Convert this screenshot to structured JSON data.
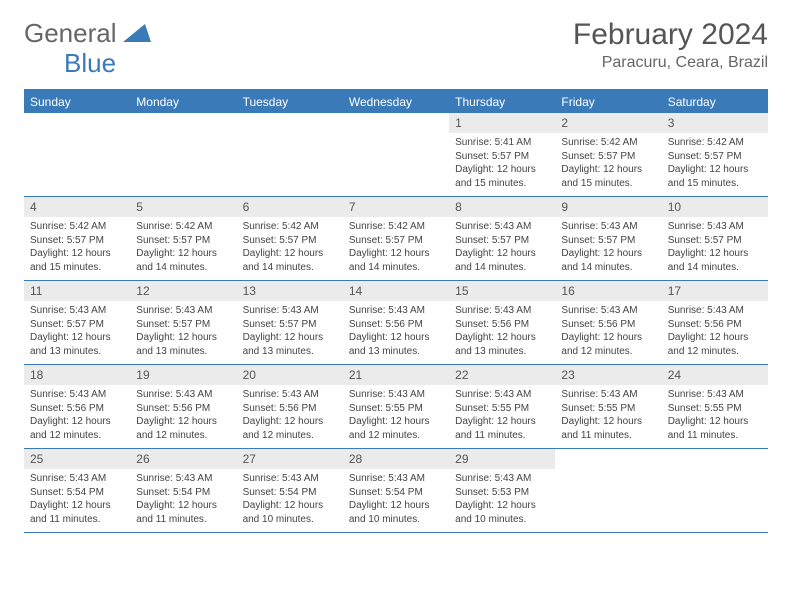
{
  "logo": {
    "part1": "General",
    "part2": "Blue"
  },
  "title": "February 2024",
  "location": "Paracuru, Ceara, Brazil",
  "weekdays": [
    "Sunday",
    "Monday",
    "Tuesday",
    "Wednesday",
    "Thursday",
    "Friday",
    "Saturday"
  ],
  "colors": {
    "header_bg": "#3a7ab8",
    "header_text": "#ffffff",
    "daynum_bg": "#ebebeb",
    "text": "#444444",
    "rule": "#3a7ab8"
  },
  "weeks": [
    [
      {
        "n": "",
        "sunrise": "",
        "sunset": "",
        "daylight": ""
      },
      {
        "n": "",
        "sunrise": "",
        "sunset": "",
        "daylight": ""
      },
      {
        "n": "",
        "sunrise": "",
        "sunset": "",
        "daylight": ""
      },
      {
        "n": "",
        "sunrise": "",
        "sunset": "",
        "daylight": ""
      },
      {
        "n": "1",
        "sunrise": "Sunrise: 5:41 AM",
        "sunset": "Sunset: 5:57 PM",
        "daylight": "Daylight: 12 hours and 15 minutes."
      },
      {
        "n": "2",
        "sunrise": "Sunrise: 5:42 AM",
        "sunset": "Sunset: 5:57 PM",
        "daylight": "Daylight: 12 hours and 15 minutes."
      },
      {
        "n": "3",
        "sunrise": "Sunrise: 5:42 AM",
        "sunset": "Sunset: 5:57 PM",
        "daylight": "Daylight: 12 hours and 15 minutes."
      }
    ],
    [
      {
        "n": "4",
        "sunrise": "Sunrise: 5:42 AM",
        "sunset": "Sunset: 5:57 PM",
        "daylight": "Daylight: 12 hours and 15 minutes."
      },
      {
        "n": "5",
        "sunrise": "Sunrise: 5:42 AM",
        "sunset": "Sunset: 5:57 PM",
        "daylight": "Daylight: 12 hours and 14 minutes."
      },
      {
        "n": "6",
        "sunrise": "Sunrise: 5:42 AM",
        "sunset": "Sunset: 5:57 PM",
        "daylight": "Daylight: 12 hours and 14 minutes."
      },
      {
        "n": "7",
        "sunrise": "Sunrise: 5:42 AM",
        "sunset": "Sunset: 5:57 PM",
        "daylight": "Daylight: 12 hours and 14 minutes."
      },
      {
        "n": "8",
        "sunrise": "Sunrise: 5:43 AM",
        "sunset": "Sunset: 5:57 PM",
        "daylight": "Daylight: 12 hours and 14 minutes."
      },
      {
        "n": "9",
        "sunrise": "Sunrise: 5:43 AM",
        "sunset": "Sunset: 5:57 PM",
        "daylight": "Daylight: 12 hours and 14 minutes."
      },
      {
        "n": "10",
        "sunrise": "Sunrise: 5:43 AM",
        "sunset": "Sunset: 5:57 PM",
        "daylight": "Daylight: 12 hours and 14 minutes."
      }
    ],
    [
      {
        "n": "11",
        "sunrise": "Sunrise: 5:43 AM",
        "sunset": "Sunset: 5:57 PM",
        "daylight": "Daylight: 12 hours and 13 minutes."
      },
      {
        "n": "12",
        "sunrise": "Sunrise: 5:43 AM",
        "sunset": "Sunset: 5:57 PM",
        "daylight": "Daylight: 12 hours and 13 minutes."
      },
      {
        "n": "13",
        "sunrise": "Sunrise: 5:43 AM",
        "sunset": "Sunset: 5:57 PM",
        "daylight": "Daylight: 12 hours and 13 minutes."
      },
      {
        "n": "14",
        "sunrise": "Sunrise: 5:43 AM",
        "sunset": "Sunset: 5:56 PM",
        "daylight": "Daylight: 12 hours and 13 minutes."
      },
      {
        "n": "15",
        "sunrise": "Sunrise: 5:43 AM",
        "sunset": "Sunset: 5:56 PM",
        "daylight": "Daylight: 12 hours and 13 minutes."
      },
      {
        "n": "16",
        "sunrise": "Sunrise: 5:43 AM",
        "sunset": "Sunset: 5:56 PM",
        "daylight": "Daylight: 12 hours and 12 minutes."
      },
      {
        "n": "17",
        "sunrise": "Sunrise: 5:43 AM",
        "sunset": "Sunset: 5:56 PM",
        "daylight": "Daylight: 12 hours and 12 minutes."
      }
    ],
    [
      {
        "n": "18",
        "sunrise": "Sunrise: 5:43 AM",
        "sunset": "Sunset: 5:56 PM",
        "daylight": "Daylight: 12 hours and 12 minutes."
      },
      {
        "n": "19",
        "sunrise": "Sunrise: 5:43 AM",
        "sunset": "Sunset: 5:56 PM",
        "daylight": "Daylight: 12 hours and 12 minutes."
      },
      {
        "n": "20",
        "sunrise": "Sunrise: 5:43 AM",
        "sunset": "Sunset: 5:56 PM",
        "daylight": "Daylight: 12 hours and 12 minutes."
      },
      {
        "n": "21",
        "sunrise": "Sunrise: 5:43 AM",
        "sunset": "Sunset: 5:55 PM",
        "daylight": "Daylight: 12 hours and 12 minutes."
      },
      {
        "n": "22",
        "sunrise": "Sunrise: 5:43 AM",
        "sunset": "Sunset: 5:55 PM",
        "daylight": "Daylight: 12 hours and 11 minutes."
      },
      {
        "n": "23",
        "sunrise": "Sunrise: 5:43 AM",
        "sunset": "Sunset: 5:55 PM",
        "daylight": "Daylight: 12 hours and 11 minutes."
      },
      {
        "n": "24",
        "sunrise": "Sunrise: 5:43 AM",
        "sunset": "Sunset: 5:55 PM",
        "daylight": "Daylight: 12 hours and 11 minutes."
      }
    ],
    [
      {
        "n": "25",
        "sunrise": "Sunrise: 5:43 AM",
        "sunset": "Sunset: 5:54 PM",
        "daylight": "Daylight: 12 hours and 11 minutes."
      },
      {
        "n": "26",
        "sunrise": "Sunrise: 5:43 AM",
        "sunset": "Sunset: 5:54 PM",
        "daylight": "Daylight: 12 hours and 11 minutes."
      },
      {
        "n": "27",
        "sunrise": "Sunrise: 5:43 AM",
        "sunset": "Sunset: 5:54 PM",
        "daylight": "Daylight: 12 hours and 10 minutes."
      },
      {
        "n": "28",
        "sunrise": "Sunrise: 5:43 AM",
        "sunset": "Sunset: 5:54 PM",
        "daylight": "Daylight: 12 hours and 10 minutes."
      },
      {
        "n": "29",
        "sunrise": "Sunrise: 5:43 AM",
        "sunset": "Sunset: 5:53 PM",
        "daylight": "Daylight: 12 hours and 10 minutes."
      },
      {
        "n": "",
        "sunrise": "",
        "sunset": "",
        "daylight": ""
      },
      {
        "n": "",
        "sunrise": "",
        "sunset": "",
        "daylight": ""
      }
    ]
  ]
}
